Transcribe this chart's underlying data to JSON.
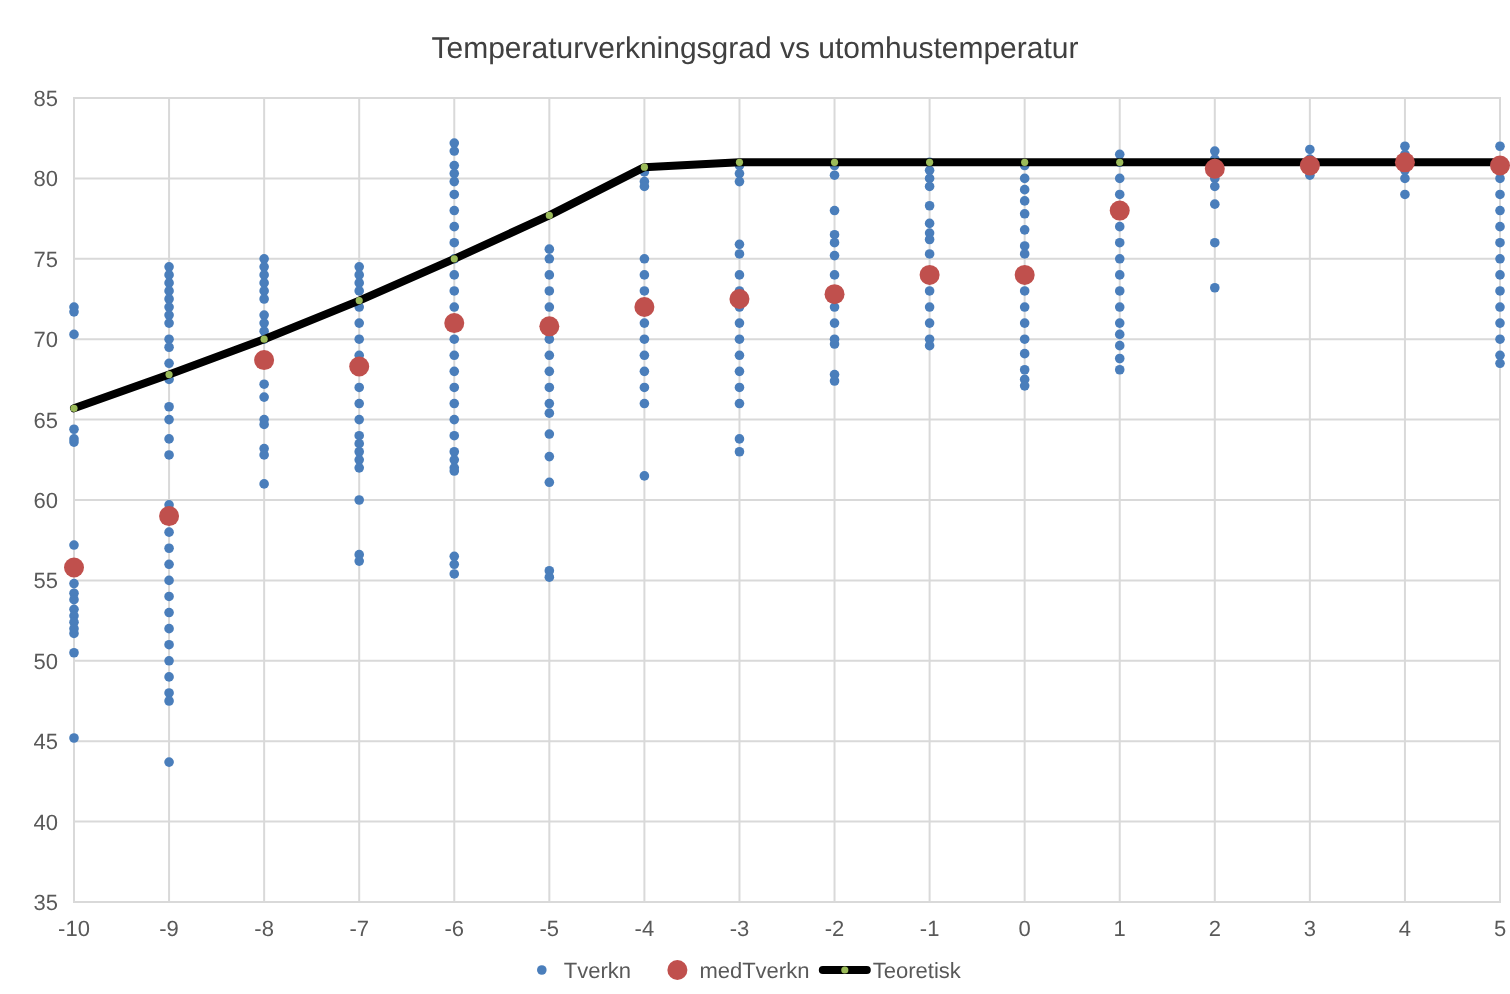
{
  "chart_data": {
    "type": "scatter",
    "title": "Temperaturverkningsgrad vs utomhustemperatur",
    "xlim": [
      -10,
      5
    ],
    "xticks": [
      -10,
      -9,
      -8,
      -7,
      -6,
      -5,
      -4,
      -3,
      -2,
      -1,
      0,
      1,
      2,
      3,
      4,
      5
    ],
    "ylim": [
      35,
      85
    ],
    "yticks": [
      35,
      40,
      45,
      50,
      55,
      60,
      65,
      70,
      75,
      80,
      85
    ],
    "grid": true,
    "legend": "bottom",
    "marker": "circle",
    "series": [
      {
        "name": "Tverkn",
        "color": "#4a7ebb",
        "x": [
          -10,
          -10,
          -10,
          -10,
          -10,
          -10,
          -10,
          -10,
          -10,
          -10,
          -10,
          -10,
          -10,
          -10,
          -10,
          -10,
          -10,
          -9,
          -9,
          -9,
          -9,
          -9,
          -9,
          -9,
          -9,
          -9,
          -9,
          -9,
          -9,
          -9,
          -9,
          -9,
          -9,
          -9,
          -9,
          -9,
          -9,
          -9,
          -9,
          -9,
          -9,
          -9,
          -9,
          -9,
          -9,
          -9,
          -9,
          -8,
          -8,
          -8,
          -8,
          -8,
          -8,
          -8,
          -8,
          -8,
          -8,
          -8,
          -8,
          -8,
          -8,
          -8,
          -8,
          -8,
          -7,
          -7,
          -7,
          -7,
          -7,
          -7,
          -7,
          -7,
          -7,
          -7,
          -7,
          -7,
          -7,
          -7,
          -7,
          -7,
          -7,
          -7,
          -7,
          -6,
          -6,
          -6,
          -6,
          -6,
          -6,
          -6,
          -6,
          -6,
          -6,
          -6,
          -6,
          -6,
          -6,
          -6,
          -6,
          -6,
          -6,
          -6,
          -6,
          -6,
          -6,
          -6,
          -6,
          -6,
          -6,
          -6,
          -5,
          -5,
          -5,
          -5,
          -5,
          -5,
          -5,
          -5,
          -5,
          -5,
          -5,
          -5,
          -5,
          -5,
          -5,
          -5,
          -4,
          -4,
          -4,
          -4,
          -4,
          -4,
          -4,
          -4,
          -4,
          -4,
          -4,
          -4,
          -4,
          -3,
          -3,
          -3,
          -3,
          -3,
          -3,
          -3,
          -3,
          -3,
          -3,
          -3,
          -3,
          -3,
          -3,
          -3,
          -3,
          -2,
          -2,
          -2,
          -2,
          -2,
          -2,
          -2,
          -2,
          -2,
          -2,
          -2,
          -2,
          -2,
          -1,
          -1,
          -1,
          -1,
          -1,
          -1,
          -1,
          -1,
          -1,
          -1,
          -1,
          -1,
          -1,
          -1,
          0,
          0,
          0,
          0,
          0,
          0,
          0,
          0,
          0,
          0,
          0,
          0,
          0,
          0,
          0,
          0,
          1,
          1,
          1,
          1,
          1,
          1,
          1,
          1,
          1,
          1,
          1,
          1,
          1,
          1,
          1,
          2,
          2,
          2,
          2,
          2,
          2,
          2,
          3,
          3,
          3,
          4,
          4,
          4,
          4,
          4,
          5,
          5,
          5,
          5,
          5,
          5,
          5,
          5,
          5,
          5,
          5,
          5,
          5,
          5
        ],
        "values": [
          72,
          71.7,
          70.3,
          64.4,
          63.8,
          63.6,
          57.2,
          54.8,
          54.2,
          53.8,
          53.2,
          52.8,
          52.4,
          52,
          51.7,
          50.5,
          45.2,
          74.5,
          74,
          73.5,
          73,
          72.5,
          72,
          71.5,
          71,
          70,
          69.5,
          68.5,
          67.5,
          65.8,
          65,
          63.8,
          62.8,
          59.7,
          58,
          57,
          56,
          55,
          54,
          53,
          52,
          51,
          50,
          49,
          48,
          47.5,
          43.7,
          75,
          74.5,
          74,
          73.5,
          73,
          72.5,
          71.5,
          71,
          70.5,
          70,
          67.2,
          66.4,
          65,
          64.7,
          63.2,
          62.8,
          61,
          74.5,
          74,
          73.5,
          73,
          72,
          71,
          70,
          69,
          67,
          66,
          65,
          64,
          63.5,
          63,
          62.5,
          62,
          60,
          56.6,
          56.2,
          82.2,
          81.7,
          80.8,
          80.3,
          79.8,
          79,
          78,
          77,
          76,
          75,
          74,
          73,
          72,
          70,
          69,
          68,
          67,
          66,
          65,
          64,
          63,
          62.5,
          62,
          61.8,
          56.5,
          56,
          55.4,
          75.6,
          75,
          74,
          73,
          72,
          70,
          69,
          68,
          67,
          66,
          65.4,
          64.1,
          62.7,
          61.1,
          55.6,
          55.2,
          80.4,
          79.8,
          79.5,
          75,
          74,
          73,
          71,
          70,
          69,
          68,
          67,
          66,
          61.5,
          80.8,
          80.3,
          79.8,
          75.9,
          75.3,
          74,
          73,
          72,
          71,
          70,
          69,
          68,
          67,
          66,
          63.8,
          63,
          80.8,
          80.2,
          78,
          76.5,
          76,
          75.2,
          74,
          72,
          71,
          70,
          69.7,
          67.8,
          67.4,
          81,
          80.5,
          80,
          79.5,
          78.3,
          77.2,
          76.6,
          76.2,
          75.3,
          73,
          72,
          71,
          70,
          69.6,
          80.8,
          80,
          79.3,
          78.6,
          77.8,
          76.8,
          75.8,
          75.3,
          73,
          72,
          71,
          70,
          69.1,
          68.1,
          67.5,
          67.1,
          81.5,
          81,
          80,
          79,
          77,
          76,
          75,
          74,
          73,
          72,
          71,
          70.3,
          69.6,
          68.8,
          68.1,
          81.7,
          81.2,
          80,
          79.5,
          78.4,
          76,
          73.2,
          81.8,
          81.2,
          80.2,
          82,
          81.5,
          80.5,
          80,
          79,
          82,
          80,
          79,
          78,
          77,
          76,
          75,
          74,
          73,
          72,
          71,
          70,
          69,
          68.5
        ]
      },
      {
        "name": "medTverkn",
        "color": "#c0504d",
        "x": [
          -10,
          -9,
          -8,
          -7,
          -6,
          -5,
          -4,
          -3,
          -2,
          -1,
          0,
          1,
          2,
          3,
          4,
          5
        ],
        "values": [
          55.8,
          59,
          68.7,
          68.3,
          71,
          70.8,
          72,
          72.5,
          72.8,
          74,
          74,
          78,
          80.6,
          80.8,
          81,
          80.8
        ]
      },
      {
        "name": "Teoretisk",
        "type": "line",
        "color": "#000000",
        "x": [
          -10,
          -9,
          -8,
          -7,
          -6,
          -5,
          -4,
          -3,
          -2,
          -1,
          0,
          1,
          2,
          3,
          4,
          5
        ],
        "values": [
          65.7,
          67.8,
          70,
          72.4,
          75,
          77.7,
          80.7,
          81,
          81,
          81,
          81,
          81,
          81,
          81,
          81,
          81
        ]
      }
    ]
  }
}
